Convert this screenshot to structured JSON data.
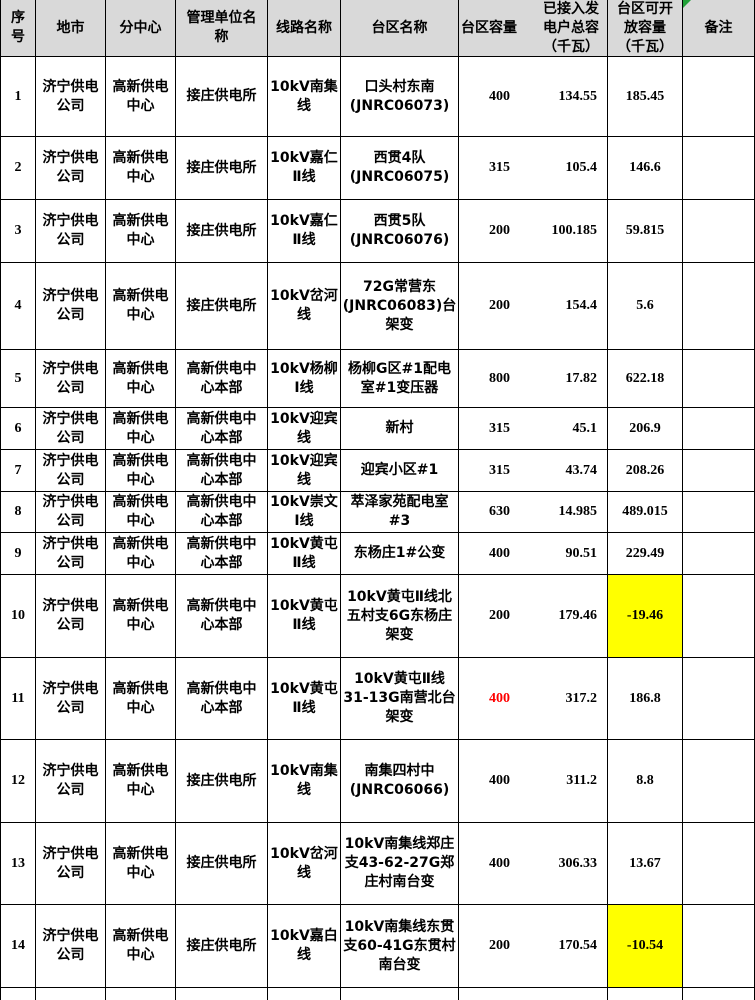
{
  "colors": {
    "header_bg": "#d9d9d9",
    "highlight_yellow": "#ffff00",
    "alert_red": "#ff0000",
    "border": "#000000",
    "corner_flag_green": "#21a038"
  },
  "icons": {
    "corner_flag": "green-corner-triangle"
  },
  "table": {
    "columns": [
      {
        "key": "no",
        "label": "序\n号"
      },
      {
        "key": "city",
        "label": "地市"
      },
      {
        "key": "subcenter",
        "label": "分中心"
      },
      {
        "key": "unit",
        "label": "管理单位名\n称"
      },
      {
        "key": "line",
        "label": "线路名称"
      },
      {
        "key": "station",
        "label": "台区名称"
      },
      {
        "key": "capacity",
        "label": "台区容量"
      },
      {
        "key": "connected",
        "label": "已接入发\n电户总容\n（千瓦）"
      },
      {
        "key": "open",
        "label": "台区可开\n放容量\n（千瓦）"
      },
      {
        "key": "remark",
        "label": "备注"
      }
    ],
    "rows": [
      {
        "no": "1",
        "city": "济宁供电\n公司",
        "subcenter": "高新供电\n中心",
        "unit": "接庄供电所",
        "line": "10kV南集\n线",
        "station": "口头村东南\n(JNRC06073)",
        "capacity": "400",
        "connected": "134.55",
        "open": "185.45",
        "remark": ""
      },
      {
        "no": "2",
        "city": "济宁供电\n公司",
        "subcenter": "高新供电\n中心",
        "unit": "接庄供电所",
        "line": "10kV嘉仁\nⅡ线",
        "station": "西贯4队\n(JNRC06075)",
        "capacity": "315",
        "connected": "105.4",
        "open": "146.6",
        "remark": ""
      },
      {
        "no": "3",
        "city": "济宁供电\n公司",
        "subcenter": "高新供电\n中心",
        "unit": "接庄供电所",
        "line": "10kV嘉仁\nⅡ线",
        "station": "西贯5队\n(JNRC06076)",
        "capacity": "200",
        "connected": "100.185",
        "open": "59.815",
        "remark": ""
      },
      {
        "no": "4",
        "city": "济宁供电\n公司",
        "subcenter": "高新供电\n中心",
        "unit": "接庄供电所",
        "line": "10kV岔河\n线",
        "station": "72G常营东\n(JNRC06083)台\n架变",
        "capacity": "200",
        "connected": "154.4",
        "open": "5.6",
        "remark": ""
      },
      {
        "no": "5",
        "city": "济宁供电\n公司",
        "subcenter": "高新供电\n中心",
        "unit": "高新供电中\n心本部",
        "line": "10kV杨柳\nⅠ线",
        "station": "杨柳G区#1配电\n室#1变压器",
        "capacity": "800",
        "connected": "17.82",
        "open": "622.18",
        "remark": ""
      },
      {
        "no": "6",
        "city": "济宁供电\n公司",
        "subcenter": "高新供电\n中心",
        "unit": "高新供电中\n心本部",
        "line": "10kV迎宾\n线",
        "station": "新村",
        "capacity": "315",
        "connected": "45.1",
        "open": "206.9",
        "remark": ""
      },
      {
        "no": "7",
        "city": "济宁供电\n公司",
        "subcenter": "高新供电\n中心",
        "unit": "高新供电中\n心本部",
        "line": "10kV迎宾\n线",
        "station": "迎宾小区#1",
        "capacity": "315",
        "connected": "43.74",
        "open": "208.26",
        "remark": ""
      },
      {
        "no": "8",
        "city": "济宁供电\n公司",
        "subcenter": "高新供电\n中心",
        "unit": "高新供电中\n心本部",
        "line": "10kV崇文\nⅠ线",
        "station": "萃泽家苑配电室\n#3",
        "capacity": "630",
        "connected": "14.985",
        "open": "489.015",
        "remark": ""
      },
      {
        "no": "9",
        "city": "济宁供电\n公司",
        "subcenter": "高新供电\n中心",
        "unit": "高新供电中\n心本部",
        "line": "10kV黄屯\nⅡ线",
        "station": "东杨庄1#公变",
        "capacity": "400",
        "connected": "90.51",
        "open": "229.49",
        "remark": ""
      },
      {
        "no": "10",
        "city": "济宁供电\n公司",
        "subcenter": "高新供电\n中心",
        "unit": "高新供电中\n心本部",
        "line": "10kV黄屯\nⅡ线",
        "station": "10kV黄屯Ⅱ线北\n五村支6G东杨庄\n架变",
        "capacity": "200",
        "connected": "179.46",
        "open": "-19.46",
        "remark": "",
        "open_bg": "#ffff00"
      },
      {
        "no": "11",
        "city": "济宁供电\n公司",
        "subcenter": "高新供电\n中心",
        "unit": "高新供电中\n心本部",
        "line": "10kV黄屯\nⅡ线",
        "station": "10kV黄屯Ⅱ线\n31-13G南营北台\n架变",
        "capacity": "400",
        "connected": "317.2",
        "open": "186.8",
        "remark": "",
        "capacity_color": "#ff0000"
      },
      {
        "no": "12",
        "city": "济宁供电\n公司",
        "subcenter": "高新供电\n中心",
        "unit": "接庄供电所",
        "line": "10kV南集\n线",
        "station": "南集四村中\n(JNRC06066)",
        "capacity": "400",
        "connected": "311.2",
        "open": "8.8",
        "remark": ""
      },
      {
        "no": "13",
        "city": "济宁供电\n公司",
        "subcenter": "高新供电\n中心",
        "unit": "接庄供电所",
        "line": "10kV岔河\n线",
        "station": "10kV南集线郑庄\n支43-62-27G郑\n庄村南台变",
        "capacity": "400",
        "connected": "306.33",
        "open": "13.67",
        "remark": ""
      },
      {
        "no": "14",
        "city": "济宁供电\n公司",
        "subcenter": "高新供电\n中心",
        "unit": "接庄供电所",
        "line": "10kV嘉白\n线",
        "station": "10kV南集线东贯\n支60-41G东贯村\n南台变",
        "capacity": "200",
        "connected": "170.54",
        "open": "-10.54",
        "remark": "",
        "open_bg": "#ffff00"
      }
    ]
  }
}
